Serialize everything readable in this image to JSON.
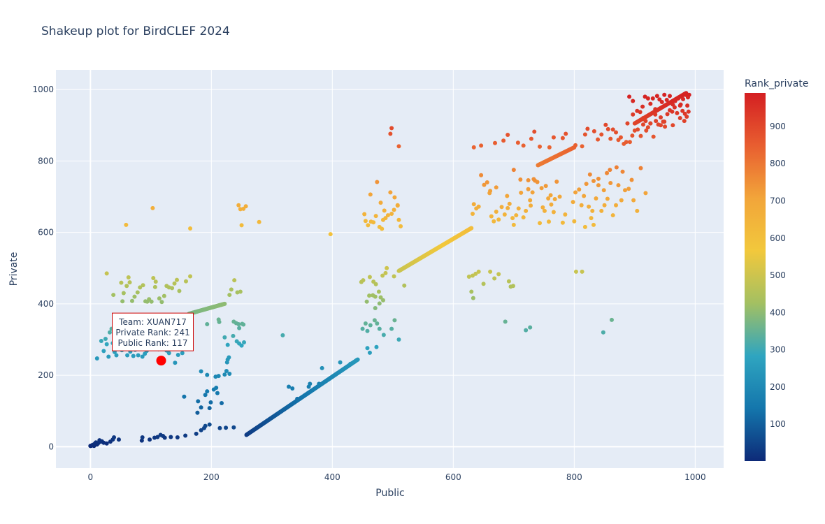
{
  "chart_data": {
    "type": "scatter",
    "title": "Shakeup plot for BirdCLEF 2024",
    "xlabel": "Public",
    "ylabel": "Private",
    "xlim": [
      -57,
      1047
    ],
    "ylim": [
      -60,
      1055
    ],
    "x_ticks": [
      "0",
      "200",
      "400",
      "600",
      "800",
      "1000"
    ],
    "y_ticks": [
      "0",
      "200",
      "400",
      "600",
      "800",
      "1000"
    ],
    "x_tick_values": [
      0,
      200,
      400,
      600,
      800,
      1000
    ],
    "y_tick_values": [
      0,
      200,
      400,
      600,
      800,
      1000
    ],
    "grid": true,
    "background": "#e5ecf6",
    "colorbar": {
      "title": "Rank_private",
      "min": 1,
      "max": 990,
      "ticks": [
        "100",
        "200",
        "300",
        "400",
        "500",
        "600",
        "700",
        "800",
        "900"
      ],
      "tick_values": [
        100,
        200,
        300,
        400,
        500,
        600,
        700,
        800,
        900
      ],
      "colorscale": [
        "#0d2a78",
        "#1476ac",
        "#2fa5c0",
        "#a3c062",
        "#f2c83c",
        "#f2a53a",
        "#e85e30",
        "#d41f22"
      ]
    },
    "highlight": {
      "public": 117,
      "private": 241,
      "color": "#ff0000",
      "label_lines": [
        "Team: XUAN717",
        "Private Rank: 241",
        "Public Rank: 117"
      ]
    },
    "diagonal_segments": [
      {
        "x": [
          0,
          5
        ],
        "y": [
          2,
          5
        ]
      },
      {
        "x": [
          258,
          442
        ],
        "y": [
          33,
          244
        ]
      },
      {
        "x": [
          163,
          222
        ],
        "y": [
          372,
          400
        ]
      },
      {
        "x": [
          510,
          630
        ],
        "y": [
          492,
          612
        ]
      },
      {
        "x": [
          740,
          800
        ],
        "y": [
          788,
          838
        ]
      },
      {
        "x": [
          900,
          985
        ],
        "y": [
          905,
          990
        ]
      }
    ],
    "points": [
      [
        2,
        3
      ],
      [
        4,
        5
      ],
      [
        6,
        2
      ],
      [
        7,
        8
      ],
      [
        9,
        12
      ],
      [
        11,
        6
      ],
      [
        13,
        10
      ],
      [
        15,
        18
      ],
      [
        17,
        14
      ],
      [
        19,
        15
      ],
      [
        22,
        11
      ],
      [
        27,
        9
      ],
      [
        33,
        14
      ],
      [
        37,
        20
      ],
      [
        39,
        26
      ],
      [
        47,
        20
      ],
      [
        85,
        17
      ],
      [
        86,
        26
      ],
      [
        98,
        20
      ],
      [
        106,
        25
      ],
      [
        111,
        27
      ],
      [
        116,
        33
      ],
      [
        120,
        30
      ],
      [
        123,
        25
      ],
      [
        133,
        27
      ],
      [
        144,
        26
      ],
      [
        157,
        31
      ],
      [
        175,
        36
      ],
      [
        214,
        52
      ],
      [
        224,
        53
      ],
      [
        237,
        54
      ],
      [
        190,
        58
      ],
      [
        197,
        62
      ],
      [
        188,
        52
      ],
      [
        183,
        46
      ],
      [
        177,
        95
      ],
      [
        178,
        127
      ],
      [
        183,
        110
      ],
      [
        190,
        145
      ],
      [
        193,
        155
      ],
      [
        197,
        108
      ],
      [
        199,
        124
      ],
      [
        204,
        160
      ],
      [
        207,
        196
      ],
      [
        208,
        165
      ],
      [
        210,
        150
      ],
      [
        212,
        198
      ],
      [
        217,
        122
      ],
      [
        222,
        202
      ],
      [
        226,
        236
      ],
      [
        227,
        244
      ],
      [
        225,
        212
      ],
      [
        229,
        250
      ],
      [
        230,
        204
      ],
      [
        155,
        140
      ],
      [
        183,
        211
      ],
      [
        193,
        201
      ],
      [
        11,
        247
      ],
      [
        18,
        296
      ],
      [
        22,
        268
      ],
      [
        25,
        302
      ],
      [
        27,
        287
      ],
      [
        30,
        252
      ],
      [
        32,
        320
      ],
      [
        35,
        330
      ],
      [
        37,
        290
      ],
      [
        40,
        265
      ],
      [
        43,
        256
      ],
      [
        47,
        288
      ],
      [
        52,
        270
      ],
      [
        57,
        278
      ],
      [
        61,
        256
      ],
      [
        66,
        266
      ],
      [
        71,
        254
      ],
      [
        74,
        271
      ],
      [
        79,
        256
      ],
      [
        86,
        252
      ],
      [
        90,
        260
      ],
      [
        93,
        268
      ],
      [
        96,
        285
      ],
      [
        100,
        312
      ],
      [
        104,
        299
      ],
      [
        109,
        300
      ],
      [
        113,
        298
      ],
      [
        118,
        289
      ],
      [
        121,
        295
      ],
      [
        126,
        269
      ],
      [
        130,
        262
      ],
      [
        140,
        235
      ],
      [
        145,
        257
      ],
      [
        152,
        262
      ],
      [
        193,
        343
      ],
      [
        213,
        349
      ],
      [
        222,
        306
      ],
      [
        236,
        310
      ],
      [
        242,
        295
      ],
      [
        246,
        289
      ],
      [
        250,
        283
      ],
      [
        254,
        292
      ],
      [
        227,
        285
      ],
      [
        237,
        350
      ],
      [
        241,
        346
      ],
      [
        245,
        343
      ],
      [
        253,
        342
      ],
      [
        246,
        332
      ],
      [
        212,
        356
      ],
      [
        251,
        344
      ],
      [
        318,
        312
      ],
      [
        328,
        168
      ],
      [
        334,
        163
      ],
      [
        342,
        134
      ],
      [
        361,
        168
      ],
      [
        363,
        176
      ],
      [
        378,
        176
      ],
      [
        383,
        220
      ],
      [
        413,
        236
      ],
      [
        430,
        232
      ],
      [
        450,
        330
      ],
      [
        455,
        345
      ],
      [
        463,
        340
      ],
      [
        470,
        354
      ],
      [
        474,
        345
      ],
      [
        478,
        330
      ],
      [
        458,
        324
      ],
      [
        458,
        276
      ],
      [
        462,
        263
      ],
      [
        473,
        279
      ],
      [
        485,
        313
      ],
      [
        498,
        330
      ],
      [
        503,
        354
      ],
      [
        510,
        300
      ],
      [
        457,
        406
      ],
      [
        461,
        423
      ],
      [
        467,
        424
      ],
      [
        471,
        420
      ],
      [
        477,
        434
      ],
      [
        480,
        418
      ],
      [
        484,
        410
      ],
      [
        471,
        388
      ],
      [
        478,
        401
      ],
      [
        483,
        479
      ],
      [
        488,
        486
      ],
      [
        502,
        477
      ],
      [
        519,
        451
      ],
      [
        462,
        475
      ],
      [
        468,
        462
      ],
      [
        472,
        455
      ],
      [
        448,
        461
      ],
      [
        451,
        466
      ],
      [
        490,
        500
      ],
      [
        482,
        610
      ],
      [
        484,
        635
      ],
      [
        488,
        640
      ],
      [
        492,
        648
      ],
      [
        498,
        652
      ],
      [
        502,
        663
      ],
      [
        508,
        676
      ],
      [
        496,
        712
      ],
      [
        503,
        698
      ],
      [
        508,
        675
      ],
      [
        486,
        661
      ],
      [
        453,
        651
      ],
      [
        455,
        632
      ],
      [
        459,
        620
      ],
      [
        464,
        630
      ],
      [
        468,
        628
      ],
      [
        478,
        615
      ],
      [
        472,
        646
      ],
      [
        510,
        635
      ],
      [
        513,
        617
      ],
      [
        463,
        706
      ],
      [
        474,
        741
      ],
      [
        480,
        683
      ],
      [
        496,
        876
      ],
      [
        498,
        892
      ],
      [
        510,
        841
      ],
      [
        397,
        595
      ],
      [
        279,
        629
      ],
      [
        248,
        665
      ],
      [
        253,
        666
      ],
      [
        245,
        676
      ],
      [
        257,
        673
      ],
      [
        250,
        620
      ],
      [
        165,
        611
      ],
      [
        103,
        668
      ],
      [
        59,
        621
      ],
      [
        38,
        425
      ],
      [
        51,
        459
      ],
      [
        55,
        430
      ],
      [
        60,
        450
      ],
      [
        65,
        460
      ],
      [
        69,
        408
      ],
      [
        73,
        420
      ],
      [
        78,
        432
      ],
      [
        82,
        446
      ],
      [
        87,
        452
      ],
      [
        91,
        407
      ],
      [
        94,
        406
      ],
      [
        97,
        413
      ],
      [
        101,
        406
      ],
      [
        104,
        472
      ],
      [
        108,
        462
      ],
      [
        114,
        415
      ],
      [
        118,
        405
      ],
      [
        122,
        422
      ],
      [
        126,
        450
      ],
      [
        130,
        446
      ],
      [
        135,
        444
      ],
      [
        139,
        457
      ],
      [
        143,
        467
      ],
      [
        147,
        436
      ],
      [
        158,
        463
      ],
      [
        165,
        477
      ],
      [
        243,
        432
      ],
      [
        248,
        434
      ],
      [
        230,
        425
      ],
      [
        233,
        440
      ],
      [
        238,
        466
      ],
      [
        63,
        474
      ],
      [
        53,
        407
      ],
      [
        27,
        485
      ],
      [
        107,
        447
      ],
      [
        632,
        479
      ],
      [
        637,
        484
      ],
      [
        642,
        490
      ],
      [
        650,
        456
      ],
      [
        661,
        490
      ],
      [
        668,
        471
      ],
      [
        675,
        483
      ],
      [
        695,
        448
      ],
      [
        699,
        450
      ],
      [
        633,
        416
      ],
      [
        630,
        434
      ],
      [
        626,
        476
      ],
      [
        632,
        652
      ],
      [
        634,
        679
      ],
      [
        638,
        667
      ],
      [
        642,
        672
      ],
      [
        646,
        760
      ],
      [
        651,
        733
      ],
      [
        656,
        740
      ],
      [
        660,
        710
      ],
      [
        663,
        645
      ],
      [
        667,
        631
      ],
      [
        671,
        658
      ],
      [
        675,
        636
      ],
      [
        680,
        671
      ],
      [
        685,
        650
      ],
      [
        690,
        668
      ],
      [
        693,
        680
      ],
      [
        698,
        640
      ],
      [
        700,
        621
      ],
      [
        704,
        648
      ],
      [
        708,
        667
      ],
      [
        712,
        711
      ],
      [
        716,
        642
      ],
      [
        720,
        660
      ],
      [
        724,
        721
      ],
      [
        727,
        690
      ],
      [
        731,
        712
      ],
      [
        735,
        745
      ],
      [
        739,
        741
      ],
      [
        743,
        626
      ],
      [
        748,
        670
      ],
      [
        753,
        730
      ],
      [
        757,
        695
      ],
      [
        761,
        704
      ],
      [
        766,
        657
      ],
      [
        771,
        742
      ],
      [
        776,
        700
      ],
      [
        781,
        627
      ],
      [
        785,
        650
      ],
      [
        661,
        716
      ],
      [
        671,
        726
      ],
      [
        689,
        702
      ],
      [
        700,
        775
      ],
      [
        711,
        748
      ],
      [
        724,
        746
      ],
      [
        733,
        749
      ],
      [
        728,
        675
      ],
      [
        746,
        724
      ],
      [
        751,
        660
      ],
      [
        758,
        630
      ],
      [
        762,
        678
      ],
      [
        768,
        693
      ],
      [
        802,
        712
      ],
      [
        808,
        720
      ],
      [
        812,
        676
      ],
      [
        816,
        702
      ],
      [
        820,
        736
      ],
      [
        824,
        672
      ],
      [
        828,
        640
      ],
      [
        832,
        621
      ],
      [
        836,
        695
      ],
      [
        840,
        732
      ],
      [
        845,
        660
      ],
      [
        850,
        676
      ],
      [
        855,
        694
      ],
      [
        860,
        738
      ],
      [
        864,
        648
      ],
      [
        869,
        676
      ],
      [
        873,
        732
      ],
      [
        878,
        690
      ],
      [
        884,
        718
      ],
      [
        890,
        722
      ],
      [
        895,
        747
      ],
      [
        898,
        690
      ],
      [
        904,
        660
      ],
      [
        910,
        780
      ],
      [
        918,
        710
      ],
      [
        826,
        762
      ],
      [
        832,
        744
      ],
      [
        840,
        750
      ],
      [
        849,
        718
      ],
      [
        854,
        766
      ],
      [
        859,
        775
      ],
      [
        870,
        782
      ],
      [
        880,
        770
      ],
      [
        800,
        631
      ],
      [
        818,
        615
      ],
      [
        830,
        660
      ],
      [
        798,
        685
      ],
      [
        813,
        490
      ],
      [
        803,
        490
      ],
      [
        848,
        320
      ],
      [
        862,
        355
      ],
      [
        727,
        334
      ],
      [
        686,
        350
      ],
      [
        720,
        326
      ],
      [
        692,
        463
      ],
      [
        634,
        838
      ],
      [
        646,
        843
      ],
      [
        669,
        850
      ],
      [
        683,
        857
      ],
      [
        690,
        873
      ],
      [
        707,
        851
      ],
      [
        716,
        843
      ],
      [
        729,
        862
      ],
      [
        734,
        882
      ],
      [
        743,
        840
      ],
      [
        759,
        838
      ],
      [
        766,
        866
      ],
      [
        781,
        864
      ],
      [
        786,
        876
      ],
      [
        802,
        844
      ],
      [
        813,
        841
      ],
      [
        818,
        874
      ],
      [
        822,
        890
      ],
      [
        833,
        883
      ],
      [
        839,
        860
      ],
      [
        845,
        874
      ],
      [
        852,
        901
      ],
      [
        856,
        889
      ],
      [
        860,
        862
      ],
      [
        864,
        888
      ],
      [
        869,
        880
      ],
      [
        873,
        859
      ],
      [
        877,
        866
      ],
      [
        882,
        848
      ],
      [
        886,
        853
      ],
      [
        888,
        905
      ],
      [
        892,
        853
      ],
      [
        896,
        871
      ],
      [
        900,
        885
      ],
      [
        905,
        888
      ],
      [
        910,
        870
      ],
      [
        914,
        902
      ],
      [
        918,
        912
      ],
      [
        922,
        894
      ],
      [
        926,
        905
      ],
      [
        931,
        868
      ],
      [
        935,
        912
      ],
      [
        939,
        902
      ],
      [
        943,
        922
      ],
      [
        947,
        910
      ],
      [
        950,
        896
      ],
      [
        954,
        931
      ],
      [
        958,
        942
      ],
      [
        962,
        938
      ],
      [
        966,
        950
      ],
      [
        970,
        934
      ],
      [
        975,
        955
      ],
      [
        979,
        940
      ],
      [
        983,
        932
      ],
      [
        987,
        955
      ],
      [
        891,
        980
      ],
      [
        897,
        968
      ],
      [
        904,
        940
      ],
      [
        909,
        937
      ],
      [
        913,
        952
      ],
      [
        917,
        980
      ],
      [
        922,
        975
      ],
      [
        926,
        960
      ],
      [
        930,
        975
      ],
      [
        934,
        945
      ],
      [
        937,
        982
      ],
      [
        941,
        972
      ],
      [
        945,
        965
      ],
      [
        949,
        985
      ],
      [
        953,
        971
      ],
      [
        958,
        982
      ],
      [
        963,
        958
      ],
      [
        967,
        968
      ],
      [
        972,
        975
      ],
      [
        976,
        958
      ],
      [
        980,
        973
      ],
      [
        984,
        985
      ],
      [
        988,
        978
      ],
      [
        990,
        985
      ],
      [
        989,
        938
      ],
      [
        982,
        912
      ],
      [
        986,
        924
      ],
      [
        975,
        920
      ],
      [
        963,
        900
      ],
      [
        949,
        910
      ],
      [
        943,
        900
      ],
      [
        926,
        905
      ],
      [
        919,
        885
      ],
      [
        897,
        930
      ],
      [
        934,
        930
      ],
      [
        914,
        920
      ]
    ]
  }
}
